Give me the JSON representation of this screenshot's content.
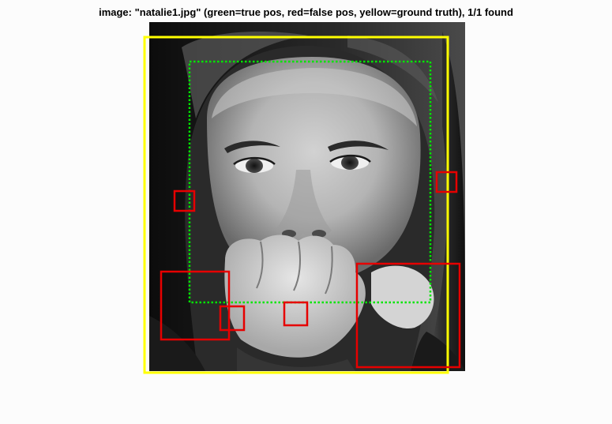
{
  "figure": {
    "title": "image: \"natalie1.jpg\" (green=true pos, red=false pos, yellow=ground truth), 1/1 found"
  },
  "legend_colors": {
    "true_pos": "#00e600",
    "false_pos": "#e60000",
    "ground_truth": "#ffff00"
  }
}
